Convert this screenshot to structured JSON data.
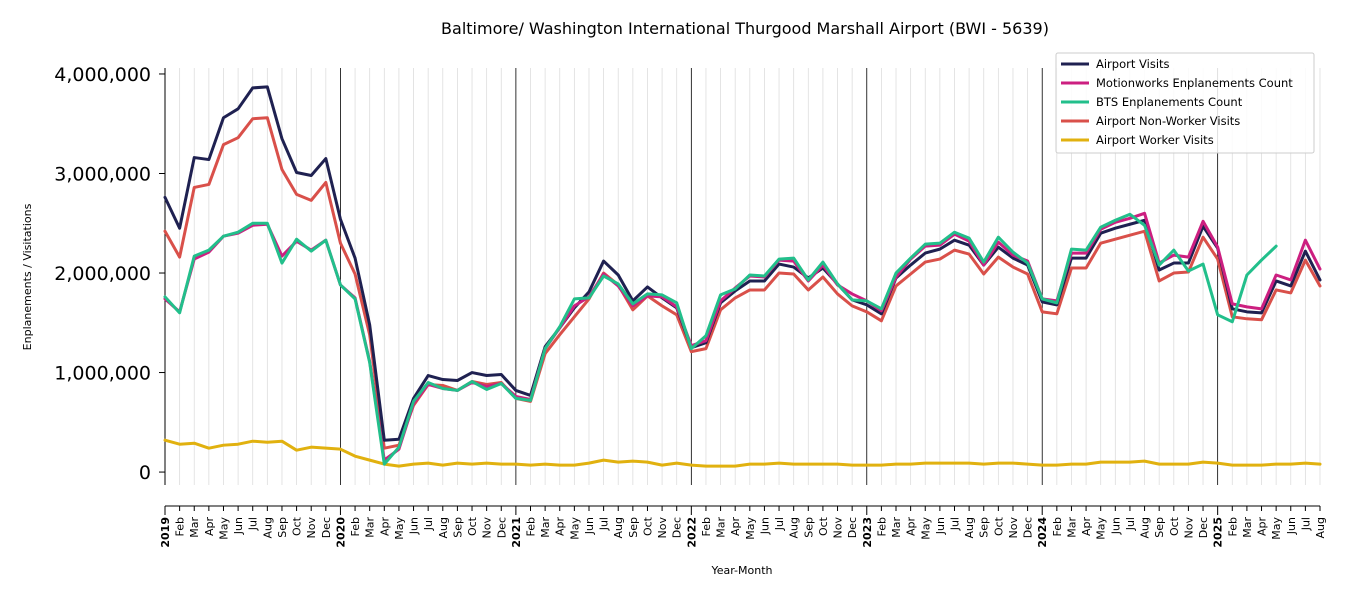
{
  "chart_data": {
    "type": "line",
    "title": "Baltimore/ Washington International Thurgood Marshall Airport (BWI - 5639)",
    "xlabel": "Year-Month",
    "ylabel": "Enplanements / Visitations",
    "ylim": [
      -130000,
      4060000
    ],
    "yticks": [
      0,
      1000000,
      2000000,
      3000000,
      4000000
    ],
    "ytick_labels": [
      "0",
      "1,000,000",
      "2,000,000",
      "3,000,000",
      "4,000,000"
    ],
    "grid": "vertical gridlines at every month, dark lines at each January",
    "legend_position": "top-right",
    "x_tick_labels": [
      "2019",
      "Feb",
      "Mar",
      "Apr",
      "May",
      "Jun",
      "Jul",
      "Aug",
      "Sep",
      "Oct",
      "Nov",
      "Dec",
      "2020",
      "Feb",
      "Mar",
      "Apr",
      "May",
      "Jun",
      "Jul",
      "Aug",
      "Sep",
      "Oct",
      "Nov",
      "Dec",
      "2021",
      "Feb",
      "Mar",
      "Apr",
      "May",
      "Jun",
      "Jul",
      "Aug",
      "Sep",
      "Oct",
      "Nov",
      "Dec",
      "2022",
      "Feb",
      "Mar",
      "Apr",
      "May",
      "Jun",
      "Jul",
      "Aug",
      "Sep",
      "Oct",
      "Nov",
      "Dec",
      "2023",
      "Feb",
      "Mar",
      "Apr",
      "May",
      "Jun",
      "Jul",
      "Aug",
      "Sep",
      "Oct",
      "Nov",
      "Dec",
      "2024",
      "Feb",
      "Mar",
      "Apr",
      "May",
      "Jun",
      "Jul",
      "Aug",
      "Sep",
      "Oct",
      "Nov",
      "Dec",
      "2025",
      "Feb",
      "Mar",
      "Apr",
      "May",
      "Jun",
      "Jul",
      "Aug"
    ],
    "series": [
      {
        "name": "Airport Visits",
        "color": "#1f2151",
        "values": [
          2760000,
          2450000,
          3160000,
          3140000,
          3560000,
          3650000,
          3860000,
          3870000,
          3350000,
          3010000,
          2980000,
          3150000,
          2540000,
          2150000,
          1480000,
          320000,
          330000,
          740000,
          970000,
          930000,
          920000,
          1000000,
          970000,
          980000,
          820000,
          770000,
          1260000,
          1450000,
          1650000,
          1810000,
          2120000,
          1980000,
          1720000,
          1860000,
          1750000,
          1650000,
          1250000,
          1300000,
          1700000,
          1820000,
          1920000,
          1920000,
          2090000,
          2060000,
          1950000,
          2050000,
          1890000,
          1730000,
          1680000,
          1590000,
          1950000,
          2080000,
          2200000,
          2240000,
          2330000,
          2280000,
          2080000,
          2260000,
          2150000,
          2080000,
          1710000,
          1680000,
          2150000,
          2150000,
          2400000,
          2450000,
          2490000,
          2530000,
          2030000,
          2100000,
          2100000,
          2470000,
          2250000,
          1640000,
          1610000,
          1600000,
          1920000,
          1870000,
          2220000,
          1930000
        ],
        "start_index": 0
      },
      {
        "name": "Motionworks Enplanements Count",
        "color": "#cc1f80",
        "values": [
          1740000,
          1610000,
          2140000,
          2210000,
          2370000,
          2400000,
          2480000,
          2490000,
          2170000,
          2320000,
          2230000,
          2330000,
          1880000,
          1750000,
          1110000,
          120000,
          230000,
          690000,
          880000,
          840000,
          820000,
          900000,
          860000,
          890000,
          760000,
          730000,
          1240000,
          1450000,
          1670000,
          1760000,
          1990000,
          1870000,
          1670000,
          1770000,
          1760000,
          1660000,
          1270000,
          1320000,
          1720000,
          1850000,
          1970000,
          1960000,
          2130000,
          2120000,
          1920000,
          2080000,
          1880000,
          1790000,
          1720000,
          1620000,
          1960000,
          2140000,
          2270000,
          2280000,
          2390000,
          2320000,
          2080000,
          2310000,
          2180000,
          2120000,
          1740000,
          1720000,
          2200000,
          2200000,
          2440000,
          2510000,
          2550000,
          2600000,
          2100000,
          2180000,
          2160000,
          2520000,
          2260000,
          1690000,
          1660000,
          1640000,
          1980000,
          1930000,
          2330000,
          2040000
        ],
        "start_index": 0
      },
      {
        "name": "BTS Enplanements Count",
        "color": "#22bf8b",
        "values": [
          1760000,
          1600000,
          2170000,
          2230000,
          2370000,
          2410000,
          2500000,
          2500000,
          2100000,
          2340000,
          2220000,
          2330000,
          1880000,
          1740000,
          1100000,
          80000,
          250000,
          710000,
          900000,
          840000,
          820000,
          910000,
          830000,
          890000,
          740000,
          720000,
          1240000,
          1460000,
          1740000,
          1750000,
          1970000,
          1890000,
          1690000,
          1790000,
          1780000,
          1700000,
          1240000,
          1370000,
          1780000,
          1840000,
          1980000,
          1970000,
          2140000,
          2150000,
          1930000,
          2110000,
          1890000,
          1730000,
          1720000,
          1640000,
          2000000,
          2150000,
          2290000,
          2300000,
          2410000,
          2350000,
          2110000,
          2360000,
          2210000,
          2100000,
          1740000,
          1700000,
          2240000,
          2230000,
          2460000,
          2530000,
          2590000,
          2480000,
          2080000,
          2230000,
          2020000,
          2090000,
          1580000,
          1510000,
          1980000,
          2130000,
          2270000
        ],
        "start_index": 0
      },
      {
        "name": "Airport Non-Worker Visits",
        "color": "#d9504a",
        "values": [
          2420000,
          2160000,
          2860000,
          2890000,
          3290000,
          3360000,
          3550000,
          3560000,
          3040000,
          2790000,
          2730000,
          2910000,
          2300000,
          1990000,
          1380000,
          240000,
          270000,
          670000,
          880000,
          870000,
          820000,
          910000,
          880000,
          900000,
          740000,
          710000,
          1190000,
          1380000,
          1560000,
          1740000,
          2000000,
          1880000,
          1630000,
          1770000,
          1670000,
          1580000,
          1210000,
          1240000,
          1630000,
          1750000,
          1830000,
          1830000,
          2000000,
          1990000,
          1830000,
          1960000,
          1790000,
          1670000,
          1610000,
          1520000,
          1870000,
          1990000,
          2110000,
          2140000,
          2230000,
          2190000,
          1990000,
          2160000,
          2060000,
          1990000,
          1610000,
          1590000,
          2050000,
          2050000,
          2300000,
          2340000,
          2380000,
          2420000,
          1920000,
          2000000,
          2010000,
          2360000,
          2140000,
          1560000,
          1540000,
          1530000,
          1830000,
          1800000,
          2130000,
          1870000
        ],
        "start_index": 0
      },
      {
        "name": "Airport Worker Visits",
        "color": "#e1b10f",
        "values": [
          320000,
          280000,
          290000,
          240000,
          270000,
          280000,
          310000,
          300000,
          310000,
          220000,
          250000,
          240000,
          230000,
          160000,
          120000,
          80000,
          60000,
          80000,
          90000,
          70000,
          90000,
          80000,
          90000,
          80000,
          80000,
          70000,
          80000,
          70000,
          70000,
          90000,
          120000,
          100000,
          110000,
          100000,
          70000,
          90000,
          70000,
          60000,
          60000,
          60000,
          80000,
          80000,
          90000,
          80000,
          80000,
          80000,
          80000,
          70000,
          70000,
          70000,
          80000,
          80000,
          90000,
          90000,
          90000,
          90000,
          80000,
          90000,
          90000,
          80000,
          70000,
          70000,
          80000,
          80000,
          100000,
          100000,
          100000,
          110000,
          80000,
          80000,
          80000,
          100000,
          90000,
          70000,
          70000,
          70000,
          80000,
          80000,
          90000,
          80000
        ],
        "start_index": 0
      }
    ]
  }
}
